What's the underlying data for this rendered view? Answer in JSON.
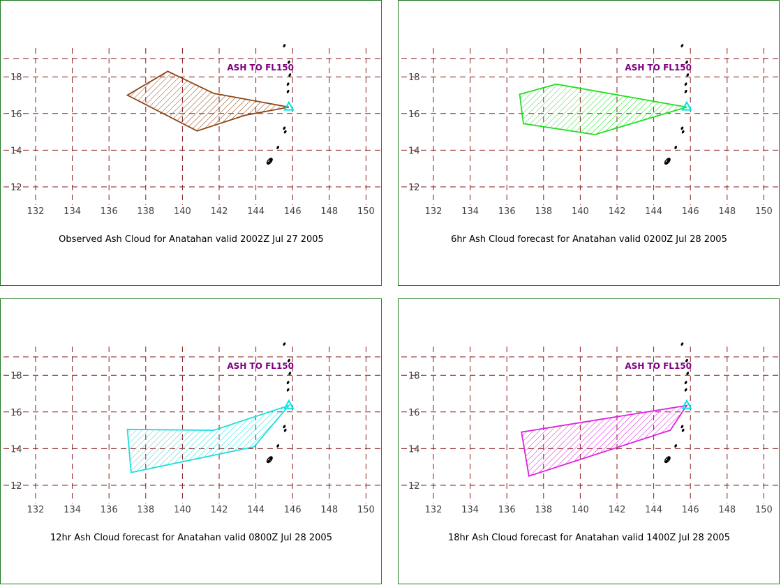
{
  "ash_label": "ASH TO FL150",
  "axes": {
    "lon_ticks": [
      132,
      134,
      136,
      138,
      140,
      142,
      144,
      146,
      148,
      150
    ],
    "lat_ticks": [
      12,
      14,
      16,
      18
    ]
  },
  "volcano": {
    "name": "Anatahan",
    "lon": 145.8,
    "lat": 16.35,
    "marker_color": "#00e5e5"
  },
  "islands": [
    [
      145.55,
      19.7
    ],
    [
      145.8,
      18.8
    ],
    [
      145.85,
      18.1
    ],
    [
      145.75,
      17.6
    ],
    [
      145.75,
      17.2
    ],
    [
      145.55,
      15.2
    ],
    [
      145.6,
      15.0
    ],
    [
      145.2,
      14.15
    ],
    [
      144.8,
      13.45
    ],
    [
      144.7,
      13.3
    ]
  ],
  "panels": [
    {
      "caption": "Observed Ash Cloud for Anatahan valid 2002Z Jul 27 2005",
      "color": "#8b4513",
      "polygon": [
        [
          137.0,
          17.0
        ],
        [
          139.2,
          18.3
        ],
        [
          141.7,
          17.1
        ],
        [
          145.8,
          16.35
        ],
        [
          143.4,
          15.9
        ],
        [
          140.8,
          15.05
        ]
      ]
    },
    {
      "caption": "6hr Ash Cloud forecast for Anatahan valid 0200Z Jul 28 2005",
      "color": "#22dd22",
      "polygon": [
        [
          136.7,
          17.05
        ],
        [
          138.7,
          17.6
        ],
        [
          145.8,
          16.35
        ],
        [
          140.8,
          14.85
        ],
        [
          136.9,
          15.45
        ]
      ]
    },
    {
      "caption": "12hr Ash Cloud forecast for Anatahan valid 0800Z Jul 28 2005",
      "color": "#22dddd",
      "polygon": [
        [
          137.0,
          15.05
        ],
        [
          141.7,
          15.0
        ],
        [
          145.8,
          16.35
        ],
        [
          143.9,
          14.1
        ],
        [
          137.2,
          12.7
        ]
      ]
    },
    {
      "caption": "18hr Ash Cloud forecast for Anatahan valid 1400Z Jul 28 2005",
      "color": "#dd22dd",
      "polygon": [
        [
          136.8,
          14.9
        ],
        [
          145.8,
          16.35
        ],
        [
          144.9,
          15.0
        ],
        [
          137.2,
          12.5
        ]
      ]
    }
  ]
}
